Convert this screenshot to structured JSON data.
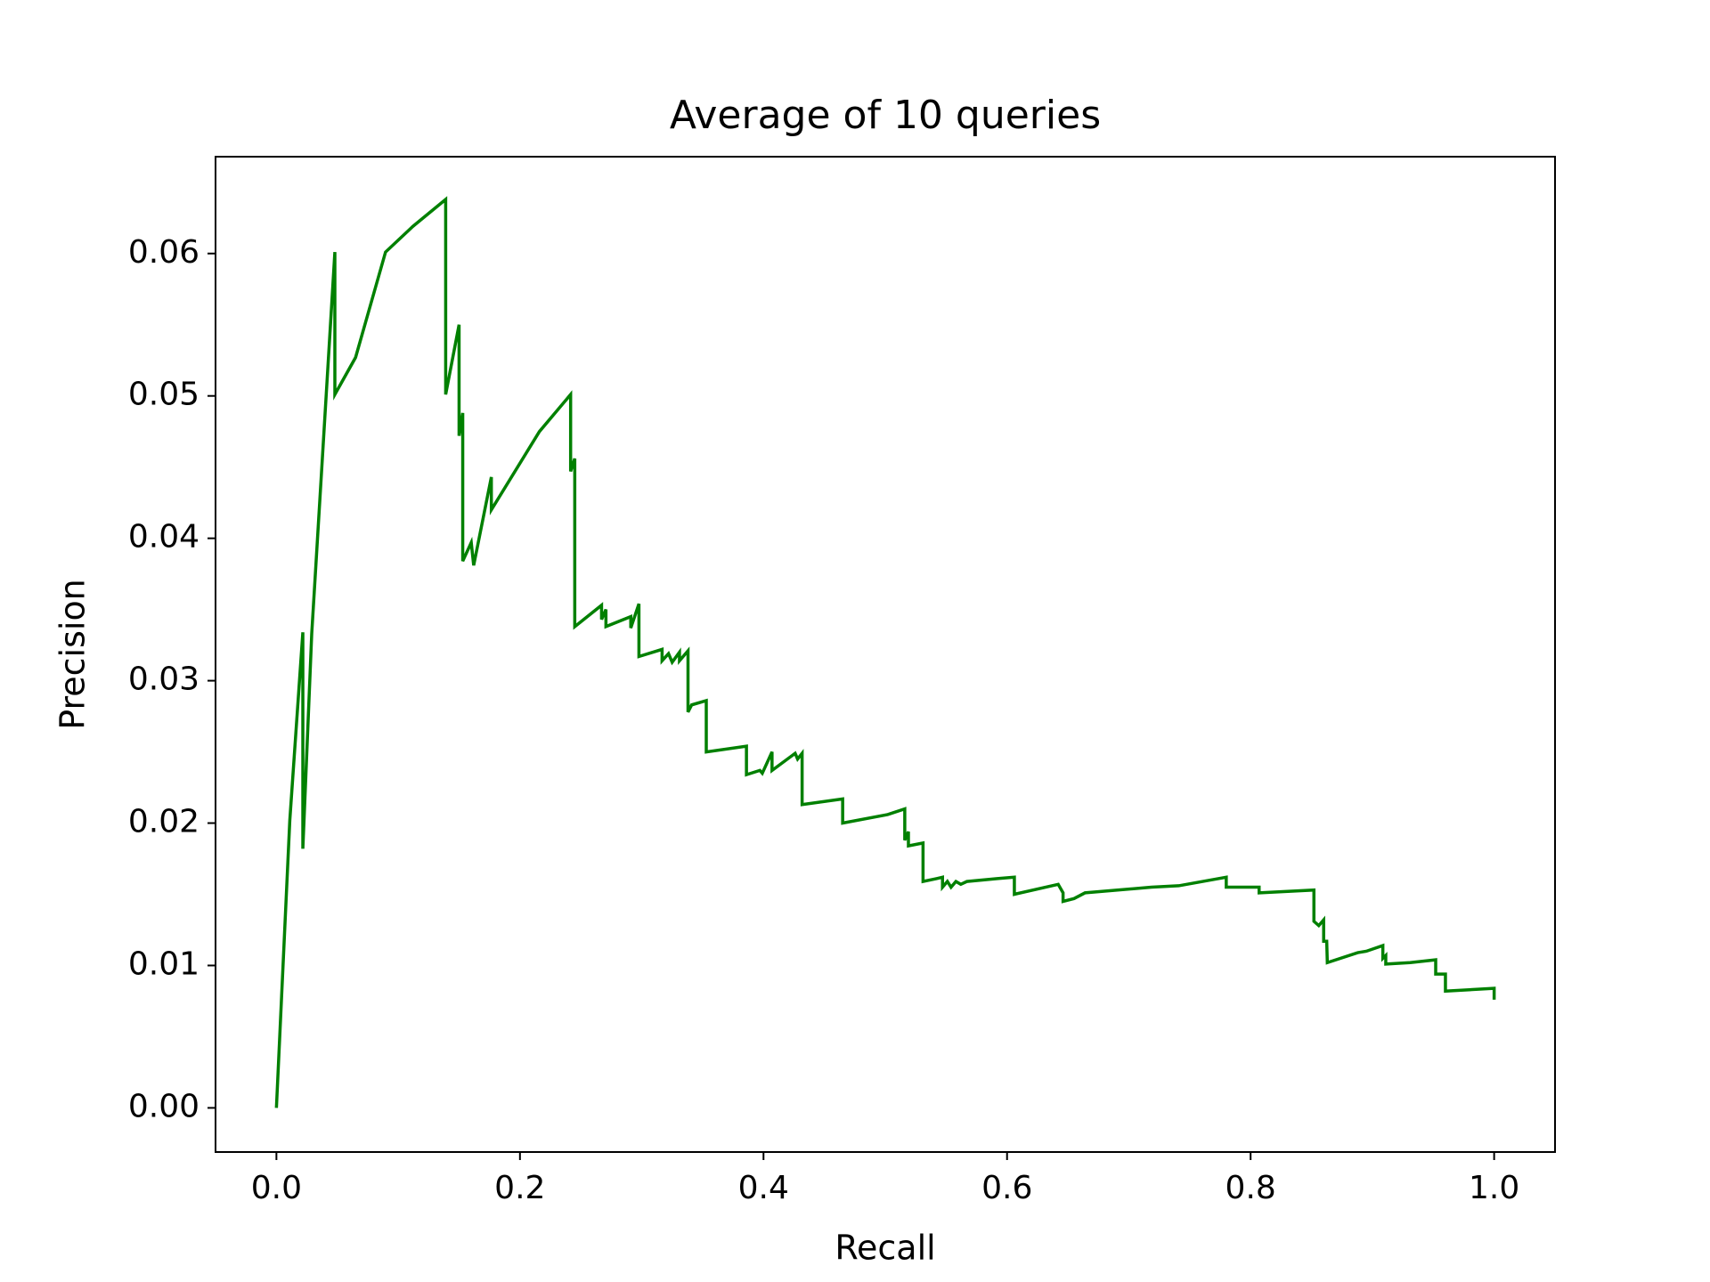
{
  "chart_data": {
    "type": "line",
    "title": "Average of 10 queries",
    "xlabel": "Recall",
    "ylabel": "Precision",
    "x": [
      0,
      0.011,
      0.0217,
      0.0217,
      0.029,
      0.048,
      0.048,
      0.065,
      0.0896,
      0.112,
      0.139,
      0.139,
      0.15,
      0.15,
      0.153,
      0.153,
      0.16,
      0.162,
      0.1765,
      0.1765,
      0.216,
      0.2416,
      0.2416,
      0.245,
      0.245,
      0.267,
      0.267,
      0.2706,
      0.2706,
      0.291,
      0.291,
      0.2977,
      0.2977,
      0.3167,
      0.3167,
      0.322,
      0.325,
      0.331,
      0.331,
      0.338,
      0.338,
      0.341,
      0.353,
      0.353,
      0.386,
      0.386,
      0.397,
      0.399,
      0.407,
      0.407,
      0.426,
      0.428,
      0.4317,
      0.4317,
      0.465,
      0.465,
      0.502,
      0.516,
      0.516,
      0.519,
      0.519,
      0.531,
      0.531,
      0.542,
      0.547,
      0.547,
      0.551,
      0.554,
      0.558,
      0.562,
      0.567,
      0.592,
      0.606,
      0.606,
      0.642,
      0.646,
      0.646,
      0.655,
      0.664,
      0.7186,
      0.741,
      0.78,
      0.78,
      0.807,
      0.807,
      0.852,
      0.852,
      0.856,
      0.86,
      0.86,
      0.8625,
      0.863,
      0.888,
      0.895,
      0.9086,
      0.9086,
      0.911,
      0.911,
      0.931,
      0.952,
      0.952,
      0.96,
      0.96,
      1.0,
      1.0
    ],
    "values": [
      0,
      0.0202,
      0.0334,
      0.0182,
      0.0333,
      0.0601,
      0.0501,
      0.0527,
      0.0601,
      0.0619,
      0.0638,
      0.0501,
      0.055,
      0.0472,
      0.0488,
      0.0384,
      0.0397,
      0.0381,
      0.0443,
      0.042,
      0.0475,
      0.0501,
      0.0447,
      0.0456,
      0.0338,
      0.0353,
      0.0343,
      0.035,
      0.0338,
      0.0345,
      0.0337,
      0.0354,
      0.0317,
      0.0322,
      0.0314,
      0.0319,
      0.0313,
      0.032,
      0.0314,
      0.0321,
      0.0278,
      0.0283,
      0.0286,
      0.025,
      0.0254,
      0.0234,
      0.0237,
      0.0235,
      0.025,
      0.0237,
      0.0249,
      0.0245,
      0.0249,
      0.0213,
      0.0217,
      0.02,
      0.0206,
      0.021,
      0.0188,
      0.0194,
      0.0184,
      0.0186,
      0.0159,
      0.0161,
      0.0162,
      0.0155,
      0.0159,
      0.0155,
      0.0159,
      0.0157,
      0.0159,
      0.0161,
      0.0162,
      0.015,
      0.0157,
      0.0151,
      0.0145,
      0.0147,
      0.0151,
      0.0155,
      0.0156,
      0.0162,
      0.0155,
      0.0155,
      0.0151,
      0.0153,
      0.0131,
      0.0128,
      0.0132,
      0.0117,
      0.0117,
      0.0102,
      0.0109,
      0.011,
      0.0114,
      0.0105,
      0.0107,
      0.0101,
      0.0102,
      0.0104,
      0.0094,
      0.0094,
      0.0082,
      0.0084,
      0.0076
    ],
    "color": "#008000",
    "xlim": [
      -0.05,
      1.05
    ],
    "xticks": [
      {
        "value": 0,
        "label": "0.0"
      },
      {
        "value": 0.2,
        "label": "0.2"
      },
      {
        "value": 0.4,
        "label": "0.4"
      },
      {
        "value": 0.6,
        "label": "0.6"
      },
      {
        "value": 0.8,
        "label": "0.8"
      },
      {
        "value": 1,
        "label": "1.0"
      }
    ],
    "ylim": [
      -0.0031,
      0.0668
    ],
    "yticks": [
      {
        "value": 0,
        "label": "0.00"
      },
      {
        "value": 0.01,
        "label": "0.01"
      },
      {
        "value": 0.02,
        "label": "0.02"
      },
      {
        "value": 0.03,
        "label": "0.03"
      },
      {
        "value": 0.04,
        "label": "0.04"
      },
      {
        "value": 0.05,
        "label": "0.05"
      },
      {
        "value": 0.06,
        "label": "0.06"
      }
    ],
    "grid": false
  }
}
